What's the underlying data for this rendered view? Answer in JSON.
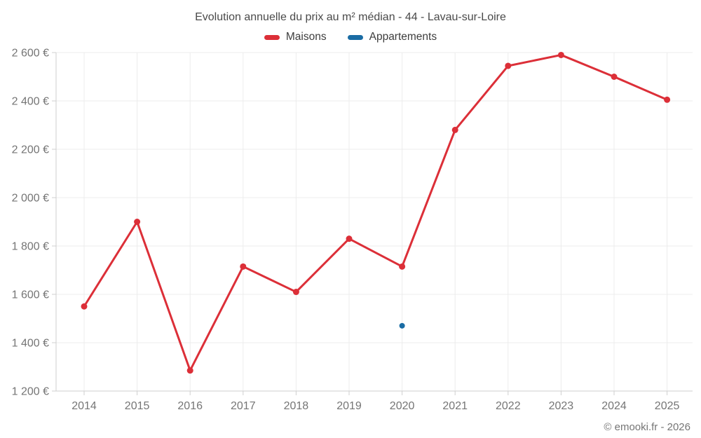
{
  "header": {
    "title": "Evolution annuelle du prix au m² médian - 44 - Lavau-sur-Loire",
    "legend": [
      {
        "label": "Maisons",
        "color": "#dc2f38"
      },
      {
        "label": "Appartements",
        "color": "#1a6ca4"
      }
    ]
  },
  "footer": {
    "copyright": "© emooki.fr - 2026"
  },
  "chart_data": {
    "type": "line",
    "title": "Evolution annuelle du prix au m² médian - 44 - Lavau-sur-Loire",
    "categories": [
      "2014",
      "2015",
      "2016",
      "2017",
      "2018",
      "2019",
      "2020",
      "2021",
      "2022",
      "2023",
      "2024",
      "2025"
    ],
    "series": [
      {
        "name": "Maisons",
        "color": "#dc2f38",
        "values": [
          1550,
          1900,
          1285,
          1715,
          1610,
          1830,
          1715,
          2280,
          2545,
          2590,
          2500,
          2405
        ]
      },
      {
        "name": "Appartements",
        "color": "#1a6ca4",
        "values": [
          null,
          null,
          null,
          null,
          null,
          null,
          1470,
          null,
          null,
          null,
          null,
          null
        ]
      }
    ],
    "xlabel": "",
    "ylabel": "",
    "ylim": [
      1200,
      2600
    ],
    "ytick_step": 200,
    "ytick_suffix": "€",
    "grid": true,
    "legend_position": "top",
    "colors": {
      "grid": "#ececec",
      "axis": "#cfcfcf",
      "tick_label": "#757575"
    }
  }
}
